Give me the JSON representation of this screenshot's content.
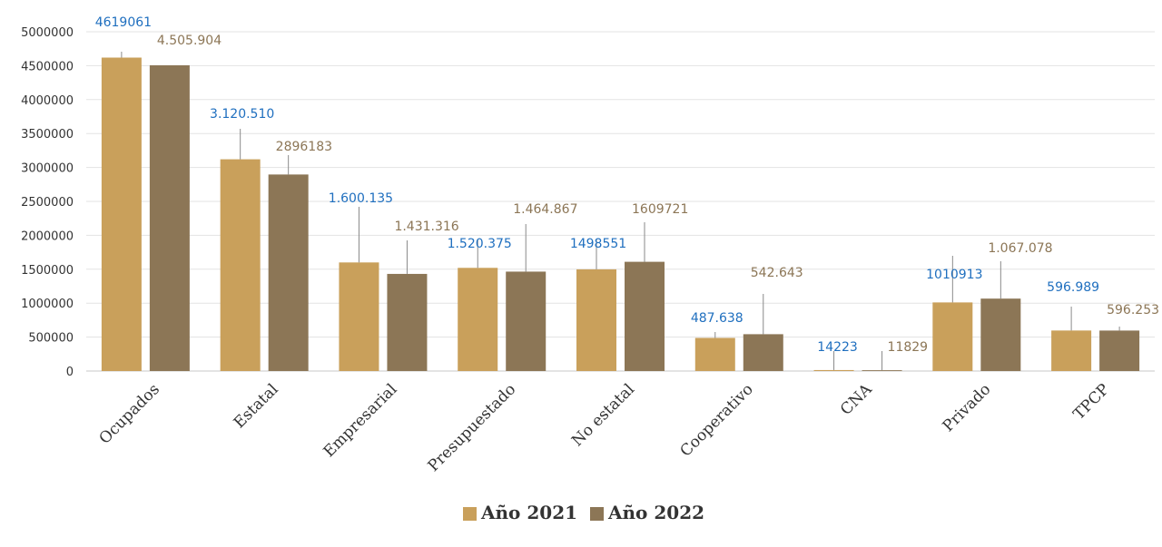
{
  "chart_data": {
    "type": "bar",
    "categories": [
      "Ocupados",
      "Estatal",
      "Empresarial",
      "Presupuestado",
      "No estatal",
      "Cooperativo",
      "CNA",
      "Privado",
      "TPCP"
    ],
    "series": [
      {
        "name": "Año 2021",
        "color": "#c9a05b",
        "label_color": "#1f6fbf",
        "values": [
          4619061,
          3120510,
          1600135,
          1520375,
          1498551,
          487638,
          14223,
          1010913,
          596989
        ],
        "labels": [
          "4619061",
          "3.120.510",
          "1.600.135",
          "1.520.375",
          "1498551",
          "487.638",
          "14223",
          "1010913",
          "596.989"
        ]
      },
      {
        "name": "Año 2022",
        "color": "#8c7656",
        "label_color": "#8c7656",
        "values": [
          4505904,
          2896183,
          1431316,
          1464867,
          1609721,
          542643,
          11829,
          1067078,
          596253
        ],
        "labels": [
          "4.505.904",
          "2896183",
          "1.431.316",
          "1.464.867",
          "1609721",
          "542.643",
          "11829",
          "1.067.078",
          "596.253"
        ]
      }
    ],
    "y_ticks": [
      "0",
      "500000",
      "1000000",
      "1500000",
      "2000000",
      "2500000",
      "3000000",
      "3500000",
      "4000000",
      "4500000",
      "5000000"
    ],
    "ylim": [
      0,
      5000000
    ],
    "grid": true,
    "legend_position": "bottom-center"
  }
}
